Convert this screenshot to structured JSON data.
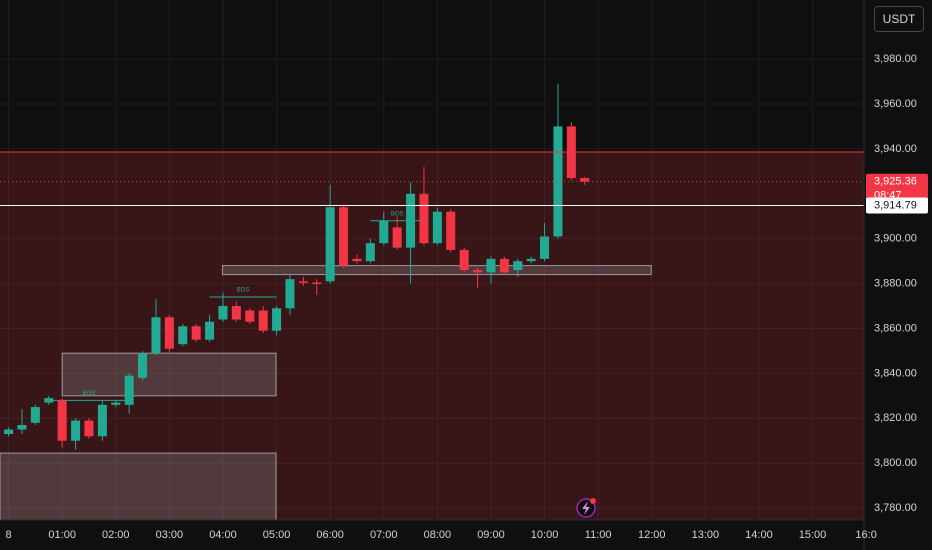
{
  "chart_data": {
    "type": "candlestick",
    "currency": "USDT",
    "up_color": "#22ab94",
    "down_color": "#f23645",
    "grid": true,
    "xlim": [
      -0.16,
      15.96
    ],
    "ylim": [
      3774.7,
      4006.3
    ],
    "xticks": [
      {
        "value": 0,
        "label": "8"
      },
      {
        "value": 1,
        "label": "01:00"
      },
      {
        "value": 2,
        "label": "02:00"
      },
      {
        "value": 3,
        "label": "03:00"
      },
      {
        "value": 4,
        "label": "04:00"
      },
      {
        "value": 5,
        "label": "05:00"
      },
      {
        "value": 6,
        "label": "06:00"
      },
      {
        "value": 7,
        "label": "07:00"
      },
      {
        "value": 8,
        "label": "08:00"
      },
      {
        "value": 9,
        "label": "09:00"
      },
      {
        "value": 10,
        "label": "10:00"
      },
      {
        "value": 11,
        "label": "11:00"
      },
      {
        "value": 12,
        "label": "12:00"
      },
      {
        "value": 13,
        "label": "13:00"
      },
      {
        "value": 14,
        "label": "14:00"
      },
      {
        "value": 15,
        "label": "15:00"
      },
      {
        "value": 16,
        "label": "16:0"
      }
    ],
    "yticks": [
      {
        "value": 3780,
        "label": "3,780.00"
      },
      {
        "value": 3800,
        "label": "3,800.00"
      },
      {
        "value": 3820,
        "label": "3,820.00"
      },
      {
        "value": 3840,
        "label": "3,840.00"
      },
      {
        "value": 3860,
        "label": "3,860.00"
      },
      {
        "value": 3880,
        "label": "3,880.00"
      },
      {
        "value": 3900,
        "label": "3,900.00"
      },
      {
        "value": 3940,
        "label": "3,940.00"
      },
      {
        "value": 3960,
        "label": "3,960.00"
      },
      {
        "value": 3980,
        "label": "3,980.00"
      }
    ],
    "x": [
      0,
      0.25,
      0.5,
      0.75,
      1,
      1.25,
      1.5,
      1.75,
      2,
      2.25,
      2.5,
      2.75,
      3,
      3.25,
      3.5,
      3.75,
      4,
      4.25,
      4.5,
      4.75,
      5,
      5.25,
      5.5,
      5.75,
      6,
      6.25,
      6.5,
      6.75,
      7,
      7.25,
      7.5,
      7.75,
      8,
      8.25,
      8.5,
      8.75,
      9,
      9.25,
      9.5,
      9.75,
      10,
      10.25,
      10.5,
      10.75
    ],
    "open": [
      3813,
      3815,
      3818,
      3827,
      3828,
      3810,
      3819,
      3812,
      3826,
      3826,
      3838,
      3849,
      3865,
      3853,
      3861,
      3855,
      3864,
      3870,
      3868,
      3868,
      3859,
      3869,
      3881,
      3880.5,
      3881,
      3914,
      3891,
      3890,
      3898,
      3905,
      3896,
      3920,
      3898,
      3912,
      3895,
      3886,
      3885,
      3891,
      3886,
      3890,
      3891,
      3901,
      3950,
      3927
    ],
    "high": [
      3816,
      3824,
      3826,
      3830,
      3829,
      3820,
      3820,
      3828,
      3828,
      3840,
      3850,
      3873,
      3866,
      3862,
      3862,
      3866,
      3876,
      3872,
      3869,
      3870,
      3870,
      3884,
      3883,
      3882,
      3924,
      3915,
      3893,
      3900,
      3912,
      3910,
      3925,
      3932,
      3914,
      3913,
      3896,
      3887,
      3892,
      3892,
      3891,
      3892,
      3907,
      3969,
      3952,
      3927.5
    ],
    "low": [
      3812,
      3813,
      3817,
      3826,
      3807,
      3806,
      3811,
      3810,
      3825,
      3822,
      3837,
      3848,
      3849,
      3852,
      3854,
      3854,
      3863,
      3863,
      3862,
      3858,
      3857,
      3866,
      3879,
      3875,
      3880,
      3887,
      3889,
      3889,
      3897,
      3895,
      3880,
      3897,
      3897,
      3894,
      3885,
      3878,
      3880,
      3884,
      3883,
      3889,
      3890,
      3900,
      3926,
      3924
    ],
    "close": [
      3815,
      3817,
      3825,
      3829,
      3810,
      3819,
      3812,
      3826,
      3827,
      3839,
      3849,
      3865,
      3851,
      3861,
      3855,
      3863,
      3870,
      3864,
      3863,
      3859,
      3869,
      3882,
      3880.5,
      3880,
      3914,
      3888,
      3890,
      3898,
      3908,
      3896,
      3920,
      3898,
      3912,
      3895,
      3886,
      3885,
      3891,
      3885,
      3890,
      3891,
      3901,
      3950,
      3927,
      3925.36
    ],
    "zones": [
      {
        "x": [
          -0.16,
          15.96
        ],
        "y": [
          3770,
          3938.6
        ],
        "color": "#f23645"
      },
      {
        "x": [
          3.99,
          11.99
        ],
        "y": [
          3884,
          3888
        ],
        "color": "#b2b5be"
      },
      {
        "x": [
          1,
          4.99
        ],
        "y": [
          3830,
          3849
        ],
        "color": "#b2b5be"
      },
      {
        "x": [
          -0.16,
          4.99
        ],
        "y": [
          3770,
          3804.5
        ],
        "color": "#b2b5be"
      }
    ],
    "bos": [
      {
        "label": "BOS",
        "price": 3908,
        "x": [
          6.75,
          7.75
        ]
      },
      {
        "label": "BOS",
        "price": 3828,
        "x": [
          0.75,
          2.25
        ]
      },
      {
        "label": "BOS",
        "price": 3874,
        "x": [
          3.75,
          5
        ]
      }
    ],
    "levels": [
      {
        "price": 3938.6,
        "color": "#f23645",
        "dash": "none"
      },
      {
        "price": 3925.36,
        "color": "#f23645",
        "dash": "1 3"
      },
      {
        "price": 3914.79,
        "color": "#ffffff",
        "dash": "none"
      }
    ],
    "price_tags": [
      {
        "value": 3925.36,
        "label": "3,925.36",
        "countdown": "08:47",
        "color": "#f23645"
      },
      {
        "value": 3914.79,
        "label": "3,914.79",
        "color": "#ffffff"
      }
    ]
  }
}
